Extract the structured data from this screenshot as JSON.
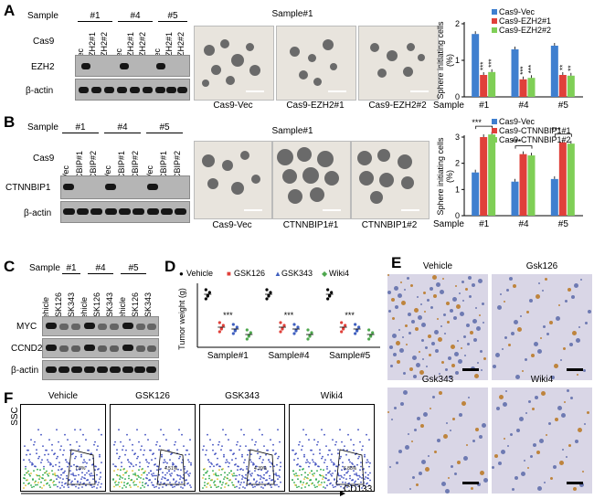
{
  "panelA": {
    "letter": "A",
    "sample_label": "Sample",
    "samples": [
      "#1",
      "#4",
      "#5"
    ],
    "cas9_label": "Cas9",
    "lanes": [
      "Vec",
      "EZH2#1",
      "EZH2#2"
    ],
    "rows": [
      "EZH2",
      "β-actin"
    ],
    "micro_title": "Sample#1",
    "micro_labels": [
      "Cas9-Vec",
      "Cas9-EZH2#1",
      "Cas9-EZH2#2"
    ]
  },
  "panelB": {
    "letter": "B",
    "sample_label": "Sample",
    "samples": [
      "#1",
      "#4",
      "#5"
    ],
    "cas9_label": "Cas9",
    "lanes": [
      "Vec",
      "CBIP#1",
      "CBIP#2"
    ],
    "rows": [
      "CTNNBIP1",
      "β-actin"
    ],
    "micro_title": "Sample#1",
    "micro_labels": [
      "Cas9-Vec",
      "CTNNBIP1#1",
      "CTNNBIP1#2"
    ]
  },
  "panelC": {
    "letter": "C",
    "sample_label": "Sample",
    "samples": [
      "#1",
      "#4",
      "#5"
    ],
    "lanes": [
      "Vehicle",
      "GSK126",
      "GSK343"
    ],
    "rows": [
      "MYC",
      "CCND2",
      "β-actin"
    ]
  },
  "panelD": {
    "letter": "D",
    "legend": [
      "Vehicle",
      "GSK126",
      "GSK343",
      "Wiki4"
    ],
    "ylabel": "Tumor weight (g)",
    "groups": [
      "Sample#1",
      "Sample#4",
      "Sample#5"
    ],
    "sig": "***"
  },
  "panelE": {
    "letter": "E",
    "titles": [
      "Vehicle",
      "Gsk126",
      "Gsk343",
      "Wiki4"
    ]
  },
  "panelF": {
    "letter": "F",
    "titles": [
      "Vehicle",
      "GSK126",
      "GSK343",
      "Wiki4"
    ],
    "percents": [
      "7.8%",
      "4.51%",
      "4.39%",
      "6.88%"
    ],
    "ylabel": "SSC",
    "xlabel": "CD133"
  },
  "chart_data": [
    {
      "type": "bar",
      "title": "",
      "xlabel": "Sample",
      "ylabel": "Sphere initiating cells (%)",
      "categories": [
        "#1",
        "#4",
        "#5"
      ],
      "ylim": [
        0,
        2
      ],
      "yticks": [
        "0",
        "1",
        "2"
      ],
      "sig": [
        "***",
        "***",
        "***",
        "***",
        "**",
        "**"
      ],
      "colors": [
        "#3f7fcf",
        "#e0403a",
        "#7fcf56"
      ],
      "series": [
        {
          "name": "Cas9-Vec",
          "values": [
            1.72,
            1.3,
            1.4
          ]
        },
        {
          "name": "Cas9-EZH2#1",
          "values": [
            0.6,
            0.48,
            0.6
          ]
        },
        {
          "name": "Cas9-EZH2#2",
          "values": [
            0.68,
            0.52,
            0.58
          ]
        }
      ]
    },
    {
      "type": "bar",
      "title": "",
      "xlabel": "Sample",
      "ylabel": "Sphere initiating cells (%)",
      "categories": [
        "#1",
        "#4",
        "#5"
      ],
      "ylim": [
        0,
        3
      ],
      "yticks": [
        "0",
        "1",
        "2",
        "3"
      ],
      "sig": [
        "***",
        "***",
        "***"
      ],
      "colors": [
        "#3f7fcf",
        "#e0403a",
        "#7fcf56"
      ],
      "series": [
        {
          "name": "Cas9-Vec",
          "values": [
            1.65,
            1.3,
            1.4
          ]
        },
        {
          "name": "Cas9-CTNNBIP1#1",
          "values": [
            3.0,
            2.35,
            2.8
          ]
        },
        {
          "name": "Cas9-CTNNBIP1#2",
          "values": [
            3.1,
            2.3,
            2.75
          ]
        }
      ]
    }
  ]
}
